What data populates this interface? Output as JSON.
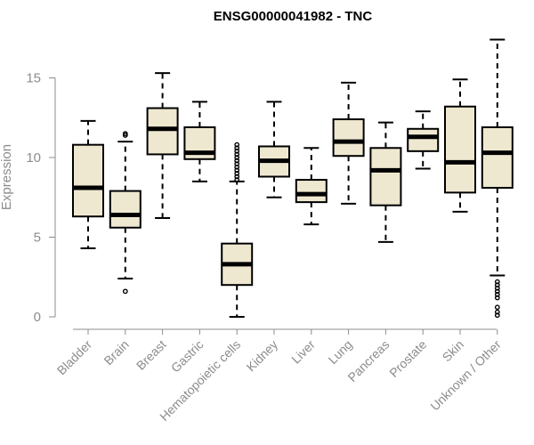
{
  "chart_data": {
    "type": "boxplot",
    "title": "ENSG00000041982 - TNC",
    "ylabel": "Expression",
    "ylim": [
      0,
      17.5
    ],
    "yticks": [
      0,
      5,
      10,
      15
    ],
    "box_color": "#efe8d1",
    "line_color": "#000000",
    "axis_color": "#8c8c8c",
    "categories": [
      "Bladder",
      "Brain",
      "Breast",
      "Gastric",
      "Hematopoietic cells",
      "Kidney",
      "Liver",
      "Lung",
      "Pancreas",
      "Prostate",
      "Skin",
      "Unknown / Other"
    ],
    "boxes": [
      {
        "whisker_low": 4.3,
        "q1": 6.3,
        "median": 8.1,
        "q3": 10.8,
        "whisker_high": 12.3,
        "outliers": []
      },
      {
        "whisker_low": 2.4,
        "q1": 5.6,
        "median": 6.4,
        "q3": 7.9,
        "whisker_high": 11.0,
        "outliers": [
          1.6,
          11.4,
          11.5
        ]
      },
      {
        "whisker_low": 6.2,
        "q1": 10.2,
        "median": 11.8,
        "q3": 13.1,
        "whisker_high": 15.3,
        "outliers": []
      },
      {
        "whisker_low": 8.5,
        "q1": 9.9,
        "median": 10.3,
        "q3": 11.9,
        "whisker_high": 13.5,
        "outliers": []
      },
      {
        "whisker_low": 0.0,
        "q1": 2.0,
        "median": 3.3,
        "q3": 4.6,
        "whisker_high": 8.5,
        "outliers": [
          8.6,
          8.8,
          9.0,
          9.2,
          9.4,
          9.6,
          9.8,
          10.0,
          10.2,
          10.4,
          10.6,
          10.8
        ]
      },
      {
        "whisker_low": 7.5,
        "q1": 8.8,
        "median": 9.8,
        "q3": 10.7,
        "whisker_high": 13.5,
        "outliers": []
      },
      {
        "whisker_low": 5.8,
        "q1": 7.2,
        "median": 7.7,
        "q3": 8.6,
        "whisker_high": 10.6,
        "outliers": []
      },
      {
        "whisker_low": 7.1,
        "q1": 10.1,
        "median": 11.0,
        "q3": 12.4,
        "whisker_high": 14.7,
        "outliers": []
      },
      {
        "whisker_low": 4.7,
        "q1": 7.0,
        "median": 9.2,
        "q3": 10.6,
        "whisker_high": 12.2,
        "outliers": []
      },
      {
        "whisker_low": 9.3,
        "q1": 10.4,
        "median": 11.3,
        "q3": 11.8,
        "whisker_high": 12.9,
        "outliers": []
      },
      {
        "whisker_low": 6.6,
        "q1": 7.8,
        "median": 9.7,
        "q3": 13.2,
        "whisker_high": 14.9,
        "outliers": []
      },
      {
        "whisker_low": 2.6,
        "q1": 8.1,
        "median": 10.3,
        "q3": 11.9,
        "whisker_high": 17.4,
        "outliers": [
          0.1,
          0.3,
          0.6,
          1.2,
          1.4,
          1.6,
          1.8,
          2.0,
          2.2
        ]
      }
    ]
  }
}
